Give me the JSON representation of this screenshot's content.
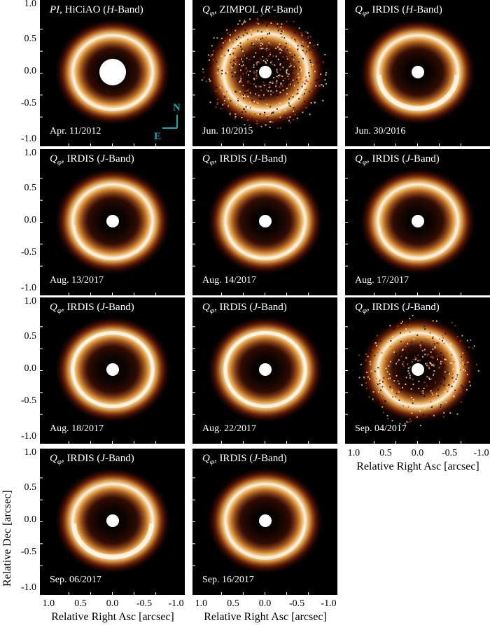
{
  "colors": {
    "background": "#000000",
    "ring_core": "#fff6e6",
    "ring_mid": "#f4a640",
    "ring_outer": "#c2320e",
    "compass": "#17a6b2"
  },
  "axes": {
    "y_label": "Relative Dec [arcsec]",
    "x_label": "Relative Right Asc [arcsec]",
    "y_ticks": [
      "1.0",
      "0.5",
      "0.0",
      "-0.5",
      "-1.0"
    ],
    "x_ticks": [
      "1.0",
      "0.5",
      "0.0",
      "-0.5",
      "-1.0"
    ]
  },
  "compass": {
    "north": "N",
    "east": "E"
  },
  "panels": [
    {
      "title_pre": "PI",
      "title_post": ", HiCiAO (",
      "band": "H",
      "band_suffix": "-Band)",
      "date": "Apr. 11/2012",
      "style": "hiciao"
    },
    {
      "title_pre": "Q",
      "title_post": ", ZIMPOL (",
      "band": "R′",
      "band_suffix": "-Band)",
      "date": "Jun. 10/2015",
      "style": "zimpol"
    },
    {
      "title_pre": "Q",
      "title_post": ", IRDIS (",
      "band": "H",
      "band_suffix": "-Band)",
      "date": "Jun. 30/2016",
      "style": "irdis_h"
    },
    {
      "title_pre": "Q",
      "title_post": ", IRDIS (",
      "band": "J",
      "band_suffix": "-Band)",
      "date": "Aug. 13/2017",
      "style": "irdis"
    },
    {
      "title_pre": "Q",
      "title_post": ", IRDIS (",
      "band": "J",
      "band_suffix": "-Band)",
      "date": "Aug. 14/2017",
      "style": "irdis"
    },
    {
      "title_pre": "Q",
      "title_post": ", IRDIS (",
      "band": "J",
      "band_suffix": "-Band)",
      "date": "Aug. 17/2017",
      "style": "irdis"
    },
    {
      "title_pre": "Q",
      "title_post": ", IRDIS (",
      "band": "J",
      "band_suffix": "-Band)",
      "date": "Aug. 18/2017",
      "style": "irdis_bright"
    },
    {
      "title_pre": "Q",
      "title_post": ", IRDIS (",
      "band": "J",
      "band_suffix": "-Band)",
      "date": "Aug. 22/2017",
      "style": "irdis_bright"
    },
    {
      "title_pre": "Q",
      "title_post": ", IRDIS (",
      "band": "J",
      "band_suffix": "-Band)",
      "date": "Sep. 04/2017",
      "style": "noisy"
    },
    {
      "title_pre": "Q",
      "title_post": ", IRDIS (",
      "band": "J",
      "band_suffix": "-Band)",
      "date": "Sep. 06/2017",
      "style": "irdis_bottom"
    },
    {
      "title_pre": "Q",
      "title_post": ", IRDIS (",
      "band": "J",
      "band_suffix": "-Band)",
      "date": "Sep. 16/2017",
      "style": "irdis"
    }
  ]
}
